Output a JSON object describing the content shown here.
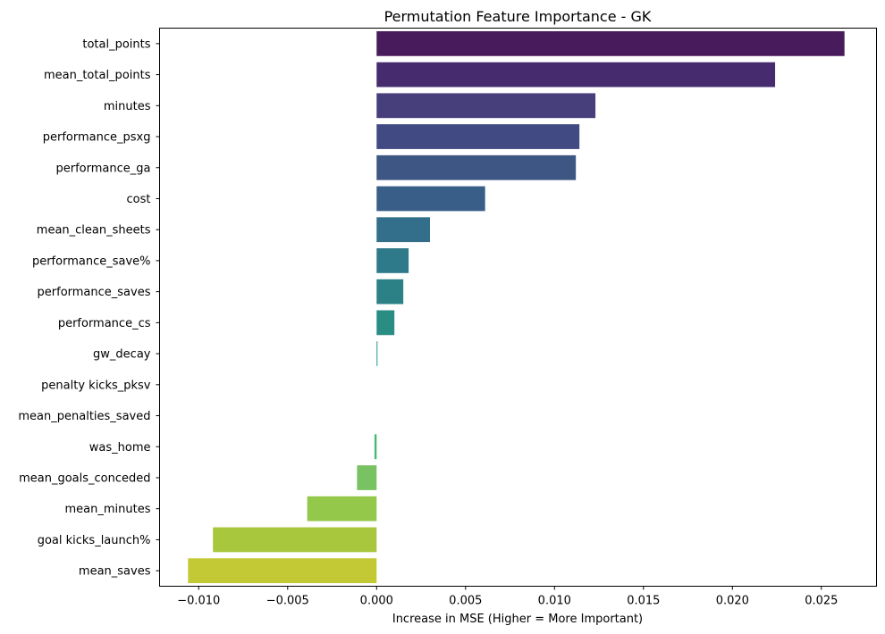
{
  "chart_data": {
    "type": "bar",
    "orientation": "horizontal",
    "title": "Permutation Feature Importance - GK",
    "xlabel": "Increase in MSE (Higher = More Important)",
    "ylabel": "",
    "xlim": [
      -0.0122,
      0.0281
    ],
    "x_ticks": [
      -0.01,
      -0.005,
      0.0,
      0.005,
      0.01,
      0.015,
      0.02,
      0.025
    ],
    "x_tick_labels": [
      "−0.010",
      "−0.005",
      "0.000",
      "0.005",
      "0.010",
      "0.015",
      "0.020",
      "0.025"
    ],
    "grid": false,
    "legend": "none",
    "palette": "viridis",
    "categories": [
      "total_points",
      "mean_total_points",
      "minutes",
      "performance_psxg",
      "performance_ga",
      "cost",
      "mean_clean_sheets",
      "performance_save%",
      "performance_saves",
      "performance_cs",
      "gw_decay",
      "penalty kicks_pksv",
      "mean_penalties_saved",
      "was_home",
      "mean_goals_conceded",
      "mean_minutes",
      "goal kicks_launch%",
      "mean_saves"
    ],
    "values": [
      0.0263,
      0.0224,
      0.0123,
      0.0114,
      0.0112,
      0.0061,
      0.003,
      0.0018,
      0.0015,
      0.001,
      5e-05,
      0.0,
      0.0,
      -0.00012,
      -0.0011,
      -0.0039,
      -0.0092,
      -0.0106
    ],
    "colors": [
      "#481b5d",
      "#462c6f",
      "#463f7c",
      "#414a82",
      "#3d5683",
      "#395f89",
      "#336e8a",
      "#2f7a8a",
      "#2b8186",
      "#2a8d84",
      "#26998a",
      "#25a286",
      "#30ad7f",
      "#46b872",
      "#79c263",
      "#93c84a",
      "#a8c73c",
      "#c3c934"
    ]
  }
}
